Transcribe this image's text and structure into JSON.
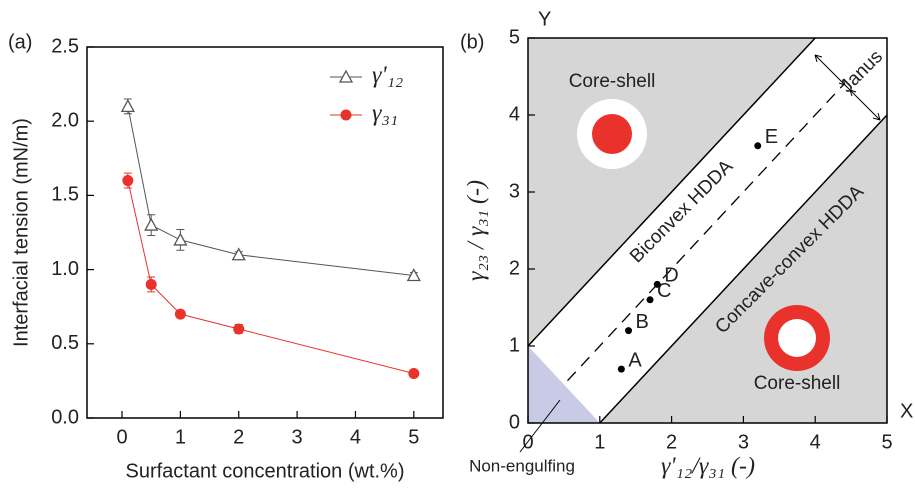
{
  "chart_data": [
    {
      "type": "line",
      "panel": "(a)",
      "xlabel": "Surfactant concentration (wt.%)",
      "ylabel": "Interfacial tension (mN/m)",
      "x": [
        0.1,
        0.5,
        1,
        2,
        5
      ],
      "series": [
        {
          "name": "γ'₁₂",
          "color": "#555555",
          "marker": "triangle-open",
          "values": [
            2.1,
            1.3,
            1.2,
            1.1,
            0.96
          ],
          "errors": [
            0.05,
            0.07,
            0.07,
            0.02,
            0.02
          ]
        },
        {
          "name": "γ₃₁",
          "color": "#e8322b",
          "marker": "circle",
          "values": [
            1.6,
            0.9,
            0.7,
            0.6,
            0.3
          ],
          "errors": [
            0.05,
            0.05,
            0.02,
            0.03,
            0.02
          ]
        }
      ],
      "xlim": [
        -0.6,
        5.5
      ],
      "xticks": [
        0,
        1,
        2,
        3,
        4,
        5
      ],
      "ylim": [
        0,
        2.5
      ],
      "yticks": [
        {
          "value": 0,
          "label": "0.0"
        },
        0.5,
        {
          "value": 1,
          "label": "1.0"
        },
        1.5,
        {
          "value": 2,
          "label": "2.0"
        },
        2.5
      ]
    },
    {
      "type": "scatter",
      "panel": "(b)",
      "xlabel": "γ'₁₂/γ₃₁ (-)",
      "ylabel": "γ₂₃ / γ₃₁ (-)",
      "x_axis_name": "X",
      "y_axis_name": "Y",
      "x": [
        1.3,
        1.4,
        1.7,
        1.8,
        3.2
      ],
      "values": [
        0.7,
        1.2,
        1.6,
        1.8,
        3.6
      ],
      "point_labels": [
        "A",
        "B",
        "C",
        "D",
        "E"
      ],
      "color": "#000000",
      "boundaries": [
        {
          "x": [
            0,
            4
          ],
          "y": [
            1,
            5
          ]
        },
        {
          "x": [
            1,
            5
          ],
          "y": [
            0,
            4
          ]
        }
      ],
      "dashed": {
        "x": [
          0.55,
          4.4
        ],
        "y": [
          0.55,
          4.4
        ]
      },
      "annotations": [
        "Core-shell",
        "Core-shell",
        "Biconvex HDDA",
        "Concave-convex HDDA",
        "Janus",
        "Non-engulfing"
      ],
      "xlim": [
        0,
        5
      ],
      "xticks": [
        0,
        1,
        2,
        3,
        4,
        5
      ],
      "ylim": [
        0,
        5
      ],
      "yticks": [
        0,
        1,
        2,
        3,
        4,
        5
      ]
    }
  ]
}
